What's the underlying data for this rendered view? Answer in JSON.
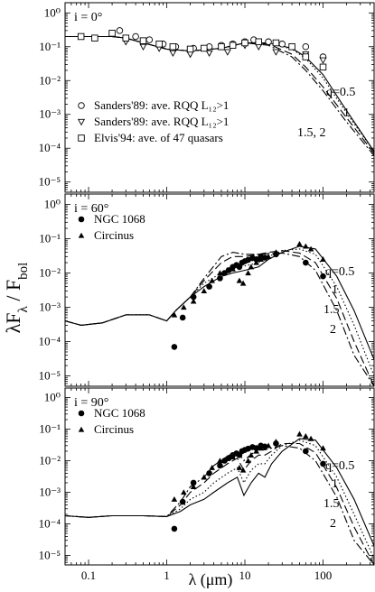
{
  "y_axis_label": "λF<sub>λ</sub> / F<sub>bol</sub>",
  "y_axis_label_parts": {
    "main": "λF",
    "sub1": "λ",
    "mid": " / F",
    "sub2": "bol"
  },
  "x_axis_label": "λ (μm)",
  "x_tick_labels": [
    "0.1",
    "1",
    "10",
    "100"
  ],
  "y_tick_labels": [
    "10⁰",
    "10⁻¹",
    "10⁻²",
    "10⁻³",
    "10⁻⁴",
    "10⁻⁵"
  ],
  "chart_data": [
    {
      "type": "line",
      "inclination_label": "i = 0°",
      "xscale": "log",
      "yscale": "log",
      "xlim": [
        0.05,
        450
      ],
      "ylim": [
        5e-06,
        2
      ],
      "q_labels": [
        "q=0.5",
        "1",
        "1.5, 2"
      ],
      "legend": [
        {
          "marker": "circle-open",
          "text": "Sanders'89: ave. RQQ L₁₂>1"
        },
        {
          "marker": "triangle-down-open",
          "text": "Sanders'89: ave. RQQ L₁₂>1"
        },
        {
          "marker": "square-open",
          "text": "Elvis'94: ave. of 47 quasars"
        }
      ],
      "series": [
        {
          "name": "q=0.5",
          "style": "solid",
          "x": [
            0.05,
            0.2,
            0.3,
            0.5,
            1,
            2,
            5,
            10,
            20,
            40,
            60,
            100,
            200,
            450
          ],
          "y": [
            0.2,
            0.2,
            0.18,
            0.13,
            0.085,
            0.075,
            0.09,
            0.13,
            0.13,
            0.09,
            0.05,
            0.015,
            0.0013,
            8e-05
          ]
        },
        {
          "name": "q=1",
          "style": "dotted",
          "x": [
            0.05,
            0.2,
            0.3,
            0.5,
            1,
            2,
            5,
            10,
            20,
            40,
            60,
            100,
            200,
            450
          ],
          "y": [
            0.2,
            0.2,
            0.18,
            0.13,
            0.085,
            0.075,
            0.09,
            0.13,
            0.13,
            0.085,
            0.045,
            0.012,
            0.0011,
            8e-05
          ]
        },
        {
          "name": "q=1.5",
          "style": "dashed",
          "x": [
            0.05,
            0.2,
            0.3,
            0.5,
            1,
            2,
            5,
            10,
            20,
            40,
            60,
            100,
            200,
            450
          ],
          "y": [
            0.2,
            0.2,
            0.18,
            0.13,
            0.085,
            0.075,
            0.09,
            0.13,
            0.12,
            0.06,
            0.025,
            0.0065,
            0.0008,
            7e-05
          ]
        },
        {
          "name": "q=2",
          "style": "dashdot",
          "x": [
            0.05,
            0.2,
            0.3,
            0.5,
            1,
            2,
            5,
            10,
            20,
            40,
            60,
            100,
            200,
            450
          ],
          "y": [
            0.2,
            0.2,
            0.18,
            0.13,
            0.085,
            0.075,
            0.09,
            0.13,
            0.11,
            0.05,
            0.02,
            0.005,
            0.0006,
            6e-05
          ]
        }
      ],
      "points": [
        {
          "marker": "circle-open",
          "x": [
            0.25,
            0.4,
            0.6,
            0.9,
            1.3,
            2.2,
            3.5,
            5,
            7,
            10,
            13,
            20,
            30,
            60,
            100
          ],
          "y": [
            0.3,
            0.2,
            0.16,
            0.12,
            0.1,
            0.09,
            0.1,
            0.11,
            0.12,
            0.14,
            0.16,
            0.14,
            0.12,
            0.1,
            0.05
          ]
        },
        {
          "marker": "triangle-down-open",
          "x": [
            0.3,
            0.5,
            0.8,
            1.2,
            2,
            3.5,
            6,
            10,
            15,
            25,
            60,
            100
          ],
          "y": [
            0.14,
            0.1,
            0.09,
            0.065,
            0.06,
            0.065,
            0.07,
            0.11,
            0.1,
            0.07,
            0.06,
            0.04
          ]
        },
        {
          "marker": "square-open",
          "x": [
            0.08,
            0.12,
            0.2,
            0.3,
            0.5,
            0.8,
            1.2,
            2,
            3,
            5,
            7,
            10,
            15,
            25,
            40,
            60,
            100
          ],
          "y": [
            0.2,
            0.18,
            0.25,
            0.18,
            0.15,
            0.12,
            0.1,
            0.085,
            0.09,
            0.1,
            0.11,
            0.13,
            0.14,
            0.13,
            0.1,
            0.05,
            0.025
          ]
        }
      ]
    },
    {
      "type": "line",
      "inclination_label": "i = 60°",
      "xscale": "log",
      "yscale": "log",
      "xlim": [
        0.05,
        450
      ],
      "ylim": [
        5e-06,
        2
      ],
      "q_labels": [
        "q=0.5",
        "1",
        "1.5",
        "2"
      ],
      "legend": [
        {
          "marker": "circle-filled",
          "text": "NGC 1068"
        },
        {
          "marker": "triangle-up-filled",
          "text": "Circinus"
        }
      ],
      "series": [
        {
          "name": "q=0.5",
          "style": "solid",
          "x": [
            0.05,
            0.08,
            0.15,
            0.3,
            0.6,
            1,
            1.3,
            2,
            3,
            5,
            7,
            10,
            15,
            20,
            30,
            50,
            80,
            150,
            250,
            450
          ],
          "y": [
            0.0004,
            0.0003,
            0.00035,
            0.0006,
            0.0006,
            0.0004,
            0.0008,
            0.002,
            0.004,
            0.008,
            0.01,
            0.012,
            0.015,
            0.025,
            0.04,
            0.06,
            0.05,
            0.008,
            0.0008,
            3e-05
          ]
        },
        {
          "name": "q=1",
          "style": "dotted",
          "x": [
            0.05,
            0.08,
            0.15,
            0.3,
            0.6,
            1,
            1.3,
            2,
            3,
            5,
            7,
            10,
            15,
            20,
            30,
            50,
            80,
            150,
            250,
            450
          ],
          "y": [
            0.0004,
            0.0003,
            0.00035,
            0.0006,
            0.0006,
            0.0004,
            0.0008,
            0.002,
            0.005,
            0.01,
            0.014,
            0.016,
            0.02,
            0.03,
            0.045,
            0.05,
            0.035,
            0.004,
            0.0003,
            1e-05
          ]
        },
        {
          "name": "q=1.5",
          "style": "dashed",
          "x": [
            0.05,
            0.08,
            0.15,
            0.3,
            0.6,
            1,
            1.3,
            2,
            3,
            5,
            7,
            10,
            15,
            20,
            30,
            50,
            80,
            150,
            250,
            450
          ],
          "y": [
            0.0004,
            0.0003,
            0.00035,
            0.0006,
            0.0006,
            0.0004,
            0.0008,
            0.002,
            0.006,
            0.02,
            0.03,
            0.03,
            0.035,
            0.04,
            0.045,
            0.038,
            0.02,
            0.0018,
            0.0001,
            5e-06
          ]
        },
        {
          "name": "q=2",
          "style": "dashdot",
          "x": [
            0.05,
            0.08,
            0.15,
            0.3,
            0.6,
            1,
            1.3,
            2,
            3,
            5,
            7,
            10,
            15,
            20,
            30,
            50,
            80,
            150,
            250,
            450
          ],
          "y": [
            0.0004,
            0.0003,
            0.00035,
            0.0006,
            0.0006,
            0.0004,
            0.0008,
            0.002,
            0.007,
            0.03,
            0.04,
            0.035,
            0.035,
            0.037,
            0.038,
            0.03,
            0.012,
            0.0008,
            4e-05,
            5e-06
          ]
        }
      ],
      "points": [
        {
          "marker": "circle-filled",
          "x": [
            1.25,
            1.6,
            2.2,
            3.5,
            4.8,
            5.5,
            6.2,
            7,
            7.8,
            8.5,
            9.2,
            10,
            11,
            12.5,
            14,
            16,
            18,
            25,
            60,
            100
          ],
          "y": [
            7e-05,
            0.0005,
            0.002,
            0.004,
            0.007,
            0.01,
            0.012,
            0.015,
            0.017,
            0.015,
            0.02,
            0.022,
            0.024,
            0.027,
            0.025,
            0.03,
            0.028,
            0.035,
            0.02,
            0.008
          ]
        },
        {
          "marker": "triangle-up-filled",
          "x": [
            1.25,
            1.65,
            2.2,
            3,
            3.8,
            4.8,
            6,
            7,
            8.5,
            9.5,
            11,
            12,
            14,
            16,
            20,
            25,
            50,
            60,
            70,
            100
          ],
          "y": [
            0.0006,
            0.001,
            0.0015,
            0.003,
            0.006,
            0.01,
            0.012,
            0.013,
            0.006,
            0.005,
            0.01,
            0.015,
            0.02,
            0.025,
            0.03,
            0.04,
            0.07,
            0.06,
            0.05,
            0.025
          ]
        }
      ]
    },
    {
      "type": "line",
      "inclination_label": "i = 90°",
      "xscale": "log",
      "yscale": "log",
      "xlim": [
        0.05,
        450
      ],
      "ylim": [
        5e-06,
        2
      ],
      "q_labels": [
        "q=0.5",
        "1",
        "1.5",
        "2"
      ],
      "legend": [
        {
          "marker": "circle-filled",
          "text": "NGC 1068"
        },
        {
          "marker": "triangle-up-filled",
          "text": "Circinus"
        }
      ],
      "series": [
        {
          "name": "q=0.5",
          "style": "solid",
          "x": [
            0.05,
            0.1,
            0.2,
            0.5,
            1,
            1.5,
            2,
            3,
            4,
            6,
            8,
            9.7,
            12,
            15,
            18,
            22,
            30,
            50,
            80,
            150,
            250,
            450
          ],
          "y": [
            0.00018,
            0.00016,
            0.00018,
            0.00018,
            0.00017,
            0.00025,
            0.0004,
            0.0006,
            0.001,
            0.002,
            0.003,
            0.0008,
            0.002,
            0.004,
            0.003,
            0.008,
            0.02,
            0.05,
            0.045,
            0.006,
            0.0006,
            2e-05
          ]
        },
        {
          "name": "q=1",
          "style": "dotted",
          "x": [
            0.05,
            0.1,
            0.2,
            0.5,
            1,
            1.5,
            2,
            3,
            4,
            6,
            8,
            9.7,
            12,
            15,
            18,
            22,
            30,
            50,
            80,
            150,
            250,
            450
          ],
          "y": [
            0.00018,
            0.00016,
            0.00018,
            0.00018,
            0.00017,
            0.0003,
            0.0006,
            0.001,
            0.002,
            0.004,
            0.006,
            0.002,
            0.005,
            0.008,
            0.008,
            0.015,
            0.03,
            0.045,
            0.03,
            0.003,
            0.0002,
            8e-06
          ]
        },
        {
          "name": "q=1.5",
          "style": "dashed",
          "x": [
            0.05,
            0.1,
            0.2,
            0.5,
            1,
            1.5,
            2,
            3,
            4,
            6,
            8,
            9.7,
            12,
            15,
            18,
            22,
            30,
            50,
            80,
            150,
            250,
            450
          ],
          "y": [
            0.00018,
            0.00016,
            0.00018,
            0.00018,
            0.00017,
            0.0004,
            0.001,
            0.002,
            0.004,
            0.008,
            0.012,
            0.005,
            0.01,
            0.015,
            0.015,
            0.02,
            0.035,
            0.035,
            0.018,
            0.0014,
            8e-05,
            5e-06
          ]
        },
        {
          "name": "q=2",
          "style": "dashdot",
          "x": [
            0.05,
            0.1,
            0.2,
            0.5,
            1,
            1.5,
            2,
            3,
            4,
            6,
            8,
            9.7,
            12,
            15,
            18,
            22,
            30,
            50,
            80,
            150,
            250,
            450
          ],
          "y": [
            0.00018,
            0.00016,
            0.00018,
            0.00018,
            0.00017,
            0.0005,
            0.0015,
            0.003,
            0.007,
            0.014,
            0.02,
            0.01,
            0.016,
            0.022,
            0.022,
            0.025,
            0.03,
            0.025,
            0.01,
            0.0007,
            3e-05,
            5e-06
          ]
        }
      ],
      "points": [
        {
          "marker": "circle-filled",
          "x": [
            1.25,
            1.6,
            2.2,
            3.5,
            4.8,
            5.5,
            6.2,
            7,
            7.8,
            8.5,
            9.2,
            10,
            11,
            12.5,
            14,
            16,
            18,
            25,
            60,
            100
          ],
          "y": [
            7e-05,
            0.0005,
            0.002,
            0.004,
            0.007,
            0.01,
            0.012,
            0.015,
            0.017,
            0.015,
            0.02,
            0.022,
            0.024,
            0.027,
            0.025,
            0.03,
            0.028,
            0.035,
            0.02,
            0.008
          ]
        },
        {
          "marker": "triangle-up-filled",
          "x": [
            1.25,
            1.65,
            2.2,
            3,
            3.8,
            4.8,
            6,
            7,
            8.5,
            9.5,
            11,
            12,
            14,
            16,
            20,
            25,
            50,
            60,
            70,
            100
          ],
          "y": [
            0.0006,
            0.001,
            0.0015,
            0.003,
            0.006,
            0.01,
            0.012,
            0.013,
            0.006,
            0.005,
            0.01,
            0.015,
            0.02,
            0.025,
            0.03,
            0.04,
            0.07,
            0.06,
            0.05,
            0.025
          ]
        }
      ]
    }
  ]
}
